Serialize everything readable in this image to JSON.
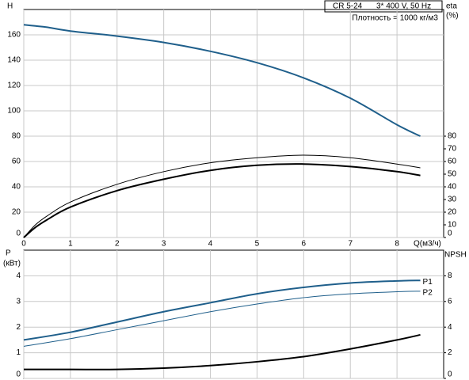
{
  "chart_data": [
    {
      "type": "line",
      "title": "CR 5-24",
      "subtitle": "3* 400 V, 50 Hz",
      "annotation": "Плотность = 1000 кг/м3",
      "ylabel": "H",
      "y2label": "eta",
      "y2unit": "(%)",
      "xlabel": "Q(м3/ч)",
      "xlim": [
        0,
        9
      ],
      "xticks": [
        0,
        1,
        2,
        3,
        4,
        5,
        6,
        7,
        8
      ],
      "ylim": [
        0,
        180
      ],
      "yticks": [
        0,
        20,
        40,
        60,
        80,
        100,
        120,
        140,
        160
      ],
      "y2lim": [
        0,
        180
      ],
      "y2ticks": [
        0,
        10,
        20,
        30,
        40,
        50,
        60,
        70,
        80
      ],
      "grid": true,
      "x": [
        0,
        0.25,
        0.5,
        1,
        2,
        3,
        4,
        5,
        6,
        7,
        8,
        8.5
      ],
      "series": [
        {
          "color": "#1f5f8b",
          "linewidth": 2,
          "values": [
            168,
            167,
            166,
            163,
            159,
            154,
            147,
            138,
            126,
            110,
            89,
            80
          ]
        },
        {
          "color": "#000000",
          "linewidth": 1,
          "axis": "y2",
          "values": [
            0,
            10,
            17,
            28,
            42,
            52,
            59,
            63,
            65,
            63,
            58,
            55
          ]
        },
        {
          "color": "#000000",
          "linewidth": 2,
          "axis": "y2",
          "values": [
            0,
            8,
            14,
            24,
            37,
            46,
            53,
            57,
            58,
            56,
            52,
            49
          ]
        }
      ]
    },
    {
      "type": "line",
      "ylabel": "P",
      "yunit": "(кВт)",
      "y2label": "NPSH",
      "xlim": [
        0,
        9
      ],
      "ylim": [
        0,
        5
      ],
      "yticks": [
        0,
        1,
        2,
        3,
        4
      ],
      "y2lim": [
        0,
        10
      ],
      "y2ticks": [
        0,
        2,
        4,
        6,
        8
      ],
      "grid": true,
      "x": [
        0,
        1,
        2,
        3,
        4,
        5,
        6,
        7,
        8,
        8.5
      ],
      "series": [
        {
          "name": "P1",
          "color": "#1f5f8b",
          "linewidth": 2,
          "values": [
            1.5,
            1.8,
            2.2,
            2.6,
            2.95,
            3.3,
            3.55,
            3.72,
            3.8,
            3.82
          ]
        },
        {
          "name": "P2",
          "color": "#1f5f8b",
          "linewidth": 1,
          "values": [
            1.25,
            1.55,
            1.9,
            2.25,
            2.6,
            2.9,
            3.15,
            3.3,
            3.38,
            3.4
          ]
        },
        {
          "color": "#000000",
          "linewidth": 2,
          "axis": "y2",
          "values": [
            0.7,
            0.7,
            0.7,
            0.8,
            1.0,
            1.3,
            1.7,
            2.3,
            3.0,
            3.4
          ]
        }
      ]
    }
  ]
}
